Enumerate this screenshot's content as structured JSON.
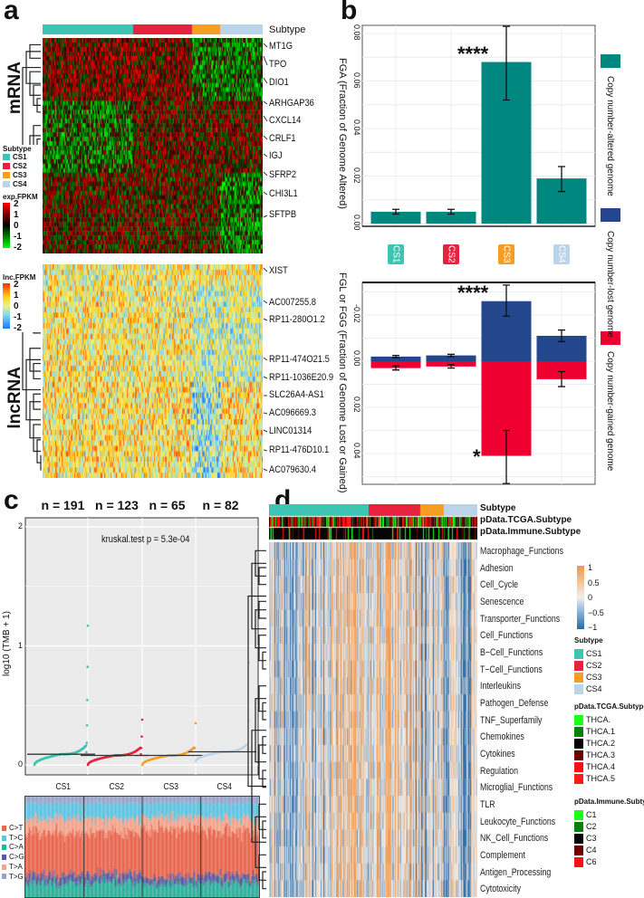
{
  "panels": {
    "a": "a",
    "b": "b",
    "c": "c",
    "d": "d"
  },
  "colors": {
    "CS1": "#3ec4b3",
    "CS2": "#e6223f",
    "CS3": "#f79e22",
    "CS4": "#bcd4ea",
    "altered": "#00877f",
    "lost": "#23468c",
    "gained": "#f00031"
  },
  "panel_a": {
    "subtype_label": "Subtype",
    "mrna_label": "mRNA",
    "lncrna_label": "lncRNA",
    "mrna_genes": [
      "MT1G",
      "TPO",
      "DIO1",
      "ARHGAP36",
      "CXCL14",
      "CRLF1",
      "IGJ",
      "SFRP2",
      "CHI3L1",
      "SFTPB"
    ],
    "lncrna_genes": [
      "XIST",
      "AC007255.8",
      "RP11-280O1.2",
      "RP11-474O21.5",
      "RP11-1036E20.9",
      "SLC26A4-AS1",
      "AC096669.3",
      "LINC01314",
      "RP11-476D10.1",
      "AC079630.4"
    ],
    "legend": {
      "subtype_title": "Subtype",
      "subtypes": [
        "CS1",
        "CS2",
        "CS3",
        "CS4"
      ],
      "exp_title": "exp.FPKM",
      "exp_ticks": [
        "2",
        "1",
        "0",
        "-1",
        "-2"
      ],
      "lnc_title": "lnc.FPKM",
      "lnc_ticks": [
        "2",
        "1",
        "0",
        "-1",
        "-2"
      ]
    }
  },
  "chart_data": [
    {
      "id": "b-top",
      "type": "bar",
      "categories": [
        "CS1",
        "CS2",
        "CS3",
        "CS4"
      ],
      "values": [
        0.005,
        0.005,
        0.068,
        0.019
      ],
      "error_low": [
        0.004,
        0.004,
        0.052,
        0.0135
      ],
      "error_high": [
        0.006,
        0.006,
        0.083,
        0.024
      ],
      "annotations": [
        {
          "category": "CS3",
          "text": "****"
        }
      ],
      "ylabel": "FGA (Fraction of Genome Altered)",
      "yticks": [
        "0.00",
        "0.02",
        "0.04",
        "0.06",
        "0.08"
      ],
      "ylim": [
        0,
        0.084
      ],
      "legend": [
        "Copy number-altered genome"
      ]
    },
    {
      "id": "b-bottom",
      "type": "bar",
      "categories": [
        "CS1",
        "CS2",
        "CS3",
        "CS4"
      ],
      "series": [
        {
          "name": "Copy number-lost genome",
          "values": [
            0.002,
            0.0025,
            0.026,
            0.011
          ],
          "error_low": [
            0.0015,
            0.002,
            0.0195,
            0.0085
          ],
          "error_high": [
            0.0025,
            0.003,
            0.033,
            0.0135
          ]
        },
        {
          "name": "Copy number-gained genome",
          "values": [
            0.003,
            0.0023,
            0.041,
            0.0078
          ],
          "error_low": [
            0.002,
            0.0015,
            0.03,
            0.0045
          ],
          "error_high": [
            0.0038,
            0.003,
            0.053,
            0.011
          ]
        }
      ],
      "annotations": [
        {
          "category": "CS3",
          "series": "lost",
          "text": "****"
        },
        {
          "category": "CS3",
          "series": "gained",
          "text": "*"
        }
      ],
      "ylabel": "FGL or FGG (Fraction of Genome Lost or Gained)",
      "yticks": [
        "-0.02",
        "0.00",
        "0.02",
        "0.04"
      ],
      "ylim": [
        -0.033,
        0.053
      ]
    },
    {
      "id": "c-top",
      "type": "scatter",
      "categories": [
        "CS1",
        "CS2",
        "CS3",
        "CS4"
      ],
      "n_labels": [
        "n = 191",
        "n = 123",
        "n = 65",
        "n = 82"
      ],
      "n": [
        191,
        123,
        65,
        82
      ],
      "median": [
        0.09,
        0.08,
        0.08,
        0.11
      ],
      "max": [
        1.17,
        0.38,
        0.35,
        0.86
      ],
      "min": [
        0.0,
        0.0,
        0.0,
        0.03
      ],
      "annotation": "kruskal.test p = 5.3e-04",
      "ylabel": "log10 (TMB + 1)",
      "yticks": [
        "0",
        "1",
        "2"
      ],
      "ylim": [
        -0.05,
        2.05
      ]
    },
    {
      "id": "c-bottom",
      "type": "bar",
      "stacked": true,
      "legend": [
        "C>T",
        "T>C",
        "C>A",
        "C>G",
        "T>A",
        "T>G"
      ],
      "legend_colors": [
        "#e8674f",
        "#5ec4e0",
        "#2bb19a",
        "#5a5a9e",
        "#f3a48c",
        "#9aa3c8"
      ]
    },
    {
      "id": "d",
      "type": "heatmap",
      "annotation_rows": [
        "Subtype",
        "pData.TCGA.Subtype",
        "pData.Immune.Subtype"
      ],
      "rows": [
        "Macrophage_Functions",
        "Adhesion",
        "Cell_Cycle",
        "Senescence",
        "Transporter_Functions",
        "Cell_Functions",
        "B−Cell_Functions",
        "T−Cell_Functions",
        "Interleukins",
        "Pathogen_Defense",
        "TNF_Superfamily",
        "Chemokines",
        "Cytokines",
        "Regulation",
        "Microglial_Functions",
        "TLR",
        "Leukocyte_Functions",
        "NK_Cell_Functions",
        "Complement",
        "Antigen_Processing",
        "Cytotoxicity"
      ],
      "scale_ticks": [
        "1",
        "0.5",
        "0",
        "−0.5",
        "−1"
      ],
      "legend": {
        "subtype_title": "Subtype",
        "subtypes": [
          "CS1",
          "CS2",
          "CS3",
          "CS4"
        ],
        "tcga_title": "pData.TCGA.Subtype",
        "tcga": [
          "THCA.",
          "THCA.1",
          "THCA.2",
          "THCA.3",
          "THCA.4",
          "THCA.5"
        ],
        "tcga_colors": [
          "#19ff19",
          "#0a7f0a",
          "#050505",
          "#6e0000",
          "#ff1010",
          "#ff1a1a"
        ],
        "immune_title": "pData.Immune.Subtype",
        "immune": [
          "C1",
          "C2",
          "C3",
          "C4",
          "C6"
        ],
        "immune_colors": [
          "#19ff19",
          "#0a7f0a",
          "#050505",
          "#6e0000",
          "#ff1010"
        ]
      }
    }
  ]
}
